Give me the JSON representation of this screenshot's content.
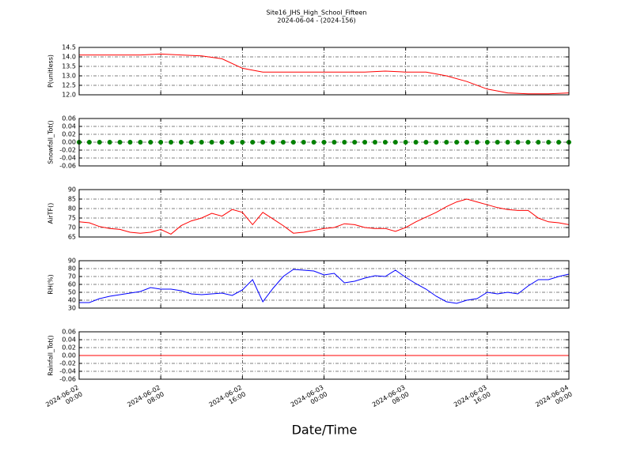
{
  "title": "Site16_JHS_High_School_Fifteen",
  "subtitle": "2024-06-04 - (2024-156)",
  "xlabel": "Date/Time",
  "chart_data": [
    {
      "type": "line",
      "ylabel": "P(unitless)",
      "color": "#ff0000",
      "xlim": [
        "2024-06-02 00:00",
        "2024-06-04 00:00"
      ],
      "ylim": [
        12.0,
        14.5
      ],
      "yticks": [
        {
          "value": 12,
          "label": "12.0"
        },
        12.5,
        {
          "value": 13,
          "label": "13.0"
        },
        13.5,
        {
          "value": 14,
          "label": "14.0"
        },
        14.5
      ],
      "grid": true,
      "x": [
        "2024-06-02 00:00",
        "2024-06-02 02:00",
        "2024-06-02 04:00",
        "2024-06-02 06:00",
        "2024-06-02 08:00",
        "2024-06-02 10:00",
        "2024-06-02 12:00",
        "2024-06-02 14:00",
        "2024-06-02 16:00",
        "2024-06-02 18:00",
        "2024-06-02 20:00",
        "2024-06-02 22:00",
        "2024-06-03 00:00",
        "2024-06-03 02:00",
        "2024-06-03 04:00",
        "2024-06-03 06:00",
        "2024-06-03 08:00",
        "2024-06-03 10:00",
        "2024-06-03 12:00",
        "2024-06-03 14:00",
        "2024-06-03 16:00",
        "2024-06-03 18:00",
        "2024-06-03 20:00",
        "2024-06-03 22:00",
        "2024-06-04 00:00"
      ],
      "values": [
        14.1,
        14.1,
        14.1,
        14.1,
        14.15,
        14.1,
        14.05,
        13.9,
        13.4,
        13.2,
        13.2,
        13.2,
        13.2,
        13.2,
        13.2,
        13.25,
        13.2,
        13.2,
        13.0,
        12.7,
        12.3,
        12.1,
        12.05,
        12.05,
        12.1
      ]
    },
    {
      "type": "scatter",
      "ylabel": "Snowfall_Tot()",
      "color": "#008000",
      "xlim": [
        "2024-06-02 00:00",
        "2024-06-04 00:00"
      ],
      "ylim": [
        -0.06,
        0.06
      ],
      "yticks": [
        -0.06,
        -0.04,
        -0.02,
        {
          "value": 0,
          "label": "0.00"
        },
        0.02,
        0.04,
        0.06
      ],
      "grid": true,
      "x": [
        "2024-06-02 00:00",
        "2024-06-02 01:00",
        "2024-06-02 02:00",
        "2024-06-02 03:00",
        "2024-06-02 04:00",
        "2024-06-02 05:00",
        "2024-06-02 06:00",
        "2024-06-02 07:00",
        "2024-06-02 08:00",
        "2024-06-02 09:00",
        "2024-06-02 10:00",
        "2024-06-02 11:00",
        "2024-06-02 12:00",
        "2024-06-02 13:00",
        "2024-06-02 14:00",
        "2024-06-02 15:00",
        "2024-06-02 16:00",
        "2024-06-02 17:00",
        "2024-06-02 18:00",
        "2024-06-02 19:00",
        "2024-06-02 20:00",
        "2024-06-02 21:00",
        "2024-06-02 22:00",
        "2024-06-02 23:00",
        "2024-06-03 00:00",
        "2024-06-03 01:00",
        "2024-06-03 02:00",
        "2024-06-03 03:00",
        "2024-06-03 04:00",
        "2024-06-03 05:00",
        "2024-06-03 06:00",
        "2024-06-03 07:00",
        "2024-06-03 08:00",
        "2024-06-03 09:00",
        "2024-06-03 10:00",
        "2024-06-03 11:00",
        "2024-06-03 12:00",
        "2024-06-03 13:00",
        "2024-06-03 14:00",
        "2024-06-03 15:00",
        "2024-06-03 16:00",
        "2024-06-03 17:00",
        "2024-06-03 18:00",
        "2024-06-03 19:00",
        "2024-06-03 20:00",
        "2024-06-03 21:00",
        "2024-06-03 22:00",
        "2024-06-03 23:00",
        "2024-06-04 00:00"
      ],
      "values": [
        0,
        0,
        0,
        0,
        0,
        0,
        0,
        0,
        0,
        0,
        0,
        0,
        0,
        0,
        0,
        0,
        0,
        0,
        0,
        0,
        0,
        0,
        0,
        0,
        0,
        0,
        0,
        0,
        0,
        0,
        0,
        0,
        0,
        0,
        0,
        0,
        0,
        0,
        0,
        0,
        0,
        0,
        0,
        0,
        0,
        0,
        0,
        0,
        0
      ]
    },
    {
      "type": "line",
      "ylabel": "AirTF()",
      "color": "#ff0000",
      "xlim": [
        "2024-06-02 00:00",
        "2024-06-04 00:00"
      ],
      "ylim": [
        65,
        90
      ],
      "yticks": [
        65,
        70,
        75,
        80,
        85,
        90
      ],
      "grid": true,
      "x": [
        "2024-06-02 00:00",
        "2024-06-02 01:00",
        "2024-06-02 02:00",
        "2024-06-02 03:00",
        "2024-06-02 04:00",
        "2024-06-02 05:00",
        "2024-06-02 06:00",
        "2024-06-02 07:00",
        "2024-06-02 08:00",
        "2024-06-02 09:00",
        "2024-06-02 10:00",
        "2024-06-02 11:00",
        "2024-06-02 12:00",
        "2024-06-02 13:00",
        "2024-06-02 14:00",
        "2024-06-02 15:00",
        "2024-06-02 16:00",
        "2024-06-02 17:00",
        "2024-06-02 18:00",
        "2024-06-02 19:00",
        "2024-06-02 20:00",
        "2024-06-02 21:00",
        "2024-06-02 22:00",
        "2024-06-02 23:00",
        "2024-06-03 00:00",
        "2024-06-03 01:00",
        "2024-06-03 02:00",
        "2024-06-03 03:00",
        "2024-06-03 04:00",
        "2024-06-03 05:00",
        "2024-06-03 06:00",
        "2024-06-03 07:00",
        "2024-06-03 08:00",
        "2024-06-03 09:00",
        "2024-06-03 10:00",
        "2024-06-03 11:00",
        "2024-06-03 12:00",
        "2024-06-03 13:00",
        "2024-06-03 14:00",
        "2024-06-03 15:00",
        "2024-06-03 16:00",
        "2024-06-03 17:00",
        "2024-06-03 18:00",
        "2024-06-03 19:00",
        "2024-06-03 20:00",
        "2024-06-03 21:00",
        "2024-06-03 22:00",
        "2024-06-03 23:00",
        "2024-06-04 00:00"
      ],
      "values": [
        73,
        72.5,
        70.5,
        69.5,
        69,
        67.5,
        67,
        67.5,
        69,
        66.5,
        71,
        73.5,
        75,
        77.5,
        76,
        79.5,
        78,
        71.5,
        78,
        74.5,
        71,
        67,
        67.5,
        68.5,
        69.5,
        70,
        72,
        71.5,
        70,
        69.5,
        69.5,
        68,
        70,
        73,
        75.5,
        78,
        81,
        83.5,
        85,
        83.5,
        82,
        80.5,
        79.5,
        79,
        79,
        75,
        73,
        72.5,
        71.5
      ]
    },
    {
      "type": "line",
      "ylabel": "RH(%)",
      "color": "#0000ff",
      "xlim": [
        "2024-06-02 00:00",
        "2024-06-04 00:00"
      ],
      "ylim": [
        30,
        90
      ],
      "yticks": [
        30,
        40,
        50,
        60,
        70,
        80,
        90
      ],
      "grid": true,
      "x": [
        "2024-06-02 00:00",
        "2024-06-02 01:00",
        "2024-06-02 02:00",
        "2024-06-02 03:00",
        "2024-06-02 04:00",
        "2024-06-02 05:00",
        "2024-06-02 06:00",
        "2024-06-02 07:00",
        "2024-06-02 08:00",
        "2024-06-02 09:00",
        "2024-06-02 10:00",
        "2024-06-02 11:00",
        "2024-06-02 12:00",
        "2024-06-02 13:00",
        "2024-06-02 14:00",
        "2024-06-02 15:00",
        "2024-06-02 16:00",
        "2024-06-02 17:00",
        "2024-06-02 18:00",
        "2024-06-02 19:00",
        "2024-06-02 20:00",
        "2024-06-02 21:00",
        "2024-06-02 22:00",
        "2024-06-02 23:00",
        "2024-06-03 00:00",
        "2024-06-03 01:00",
        "2024-06-03 02:00",
        "2024-06-03 03:00",
        "2024-06-03 04:00",
        "2024-06-03 05:00",
        "2024-06-03 06:00",
        "2024-06-03 07:00",
        "2024-06-03 08:00",
        "2024-06-03 09:00",
        "2024-06-03 10:00",
        "2024-06-03 11:00",
        "2024-06-03 12:00",
        "2024-06-03 13:00",
        "2024-06-03 14:00",
        "2024-06-03 15:00",
        "2024-06-03 16:00",
        "2024-06-03 17:00",
        "2024-06-03 18:00",
        "2024-06-03 19:00",
        "2024-06-03 20:00",
        "2024-06-03 21:00",
        "2024-06-03 22:00",
        "2024-06-03 23:00",
        "2024-06-04 00:00"
      ],
      "values": [
        37,
        37,
        42,
        45,
        47,
        49,
        51,
        56,
        54,
        54,
        52,
        48,
        47,
        48,
        49,
        46,
        53,
        66,
        38,
        55,
        70,
        79,
        78,
        77,
        72,
        74,
        62,
        64,
        68,
        71,
        70,
        78,
        69,
        61,
        54,
        45,
        38,
        36,
        40,
        42,
        50,
        48,
        50,
        48,
        58,
        66,
        66,
        70,
        73
      ]
    },
    {
      "type": "line",
      "ylabel": "Rainfall_Tot()",
      "color": "#ff0000",
      "xlim": [
        "2024-06-02 00:00",
        "2024-06-04 00:00"
      ],
      "ylim": [
        -0.06,
        0.06
      ],
      "yticks": [
        -0.06,
        -0.04,
        -0.02,
        {
          "value": 0,
          "label": "0.00"
        },
        0.02,
        0.04,
        0.06
      ],
      "xticks": [
        {
          "value": "2024-06-02 00:00",
          "label": "2024-06-02\n00:00"
        },
        {
          "value": "2024-06-02 08:00",
          "label": "2024-06-02\n08:00"
        },
        {
          "value": "2024-06-02 16:00",
          "label": "2024-06-02\n16:00"
        },
        {
          "value": "2024-06-03 00:00",
          "label": "2024-06-03\n00:00"
        },
        {
          "value": "2024-06-03 08:00",
          "label": "2024-06-03\n08:00"
        },
        {
          "value": "2024-06-03 16:00",
          "label": "2024-06-03\n16:00"
        },
        {
          "value": "2024-06-04 00:00",
          "label": "2024-06-04\n00:00"
        }
      ],
      "grid": true,
      "x": [
        "2024-06-02 00:00",
        "2024-06-04 00:00"
      ],
      "values": [
        0,
        0
      ]
    }
  ]
}
